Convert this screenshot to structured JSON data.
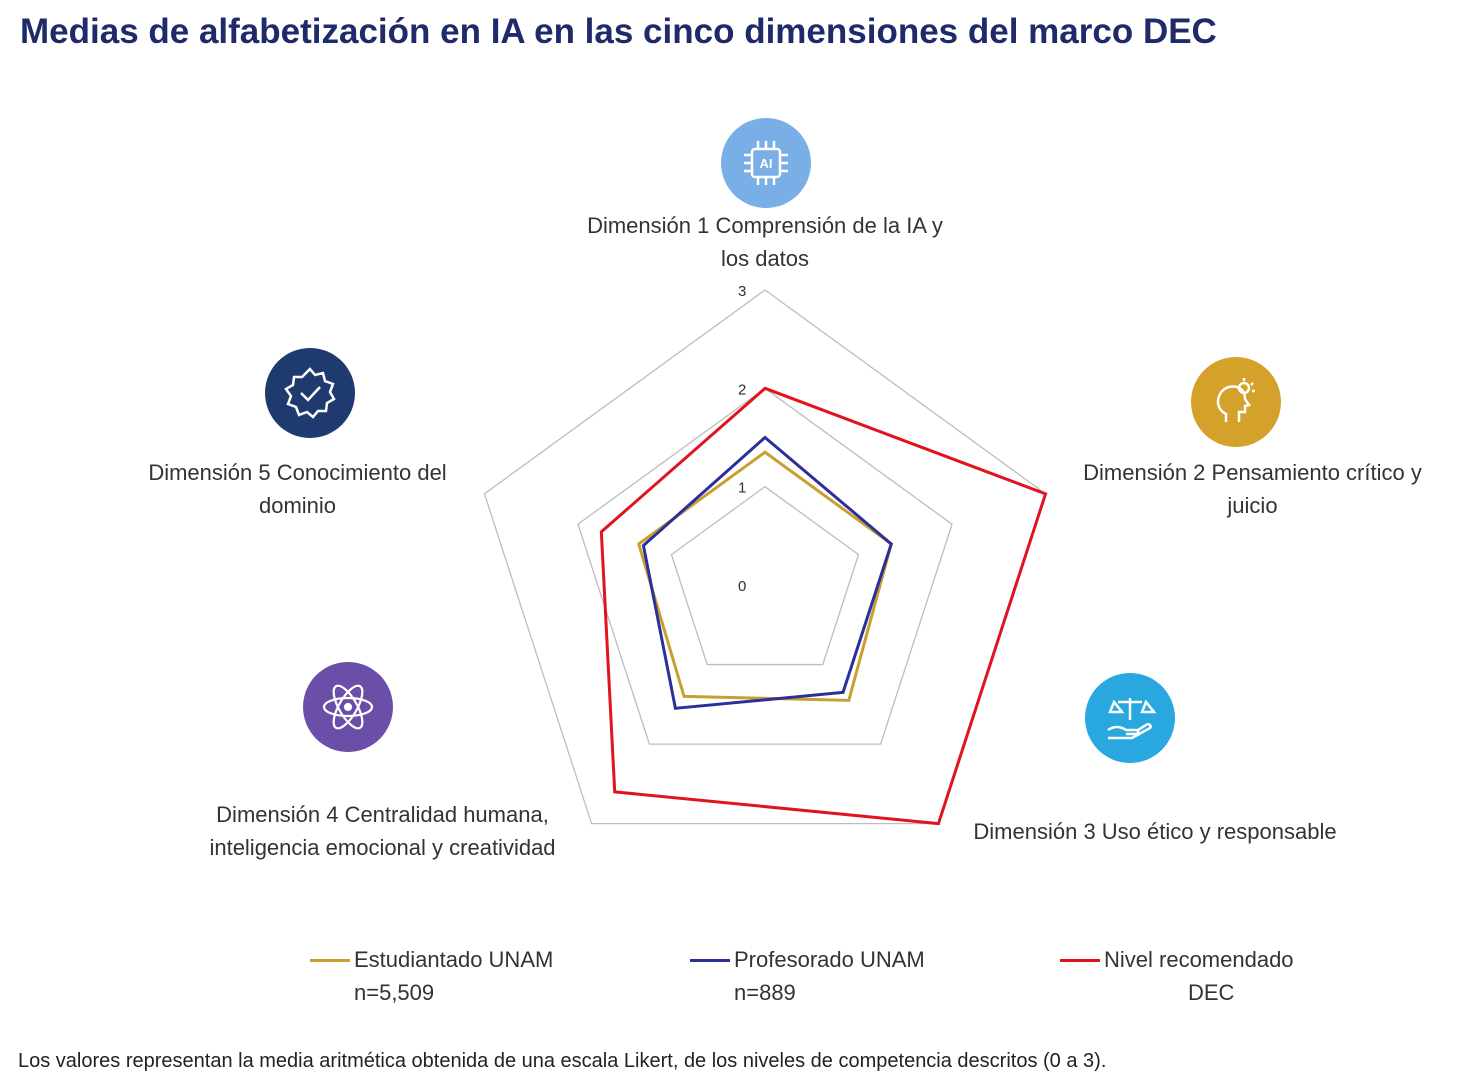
{
  "chart_data": {
    "type": "radar",
    "title": "Medias de alfabetización en IA en las cinco dimensiones del marco DEC",
    "rlim": [
      0,
      3
    ],
    "ticks": [
      "0",
      "1",
      "2",
      "3"
    ],
    "categories": [
      "Dimensión 1 Comprensión de la IA y los datos",
      "Dimensión 2 Pensamiento crítico y juicio",
      "Dimensión 3 Uso ético y responsable",
      "Dimensión 4 Centralidad humana, inteligencia emocional y creatividad",
      "Dimensión 5 Conocimiento del dominio"
    ],
    "category_labels": [
      "Dimensión 1 Comprensión de la IA y\nlos datos",
      "Dimensión 2 Pensamiento crítico y\njuicio",
      "Dimensión 3 Uso ético y responsable",
      "Dimensión 4 Centralidad humana,\ninteligencia emocional y creatividad",
      "Dimensión 5 Conocimiento del\ndominio"
    ],
    "series": [
      {
        "name": "Estudiantado UNAM",
        "sub": "n=5,509",
        "color": "#c8a030",
        "values": [
          1.35,
          1.35,
          1.45,
          1.4,
          1.35
        ]
      },
      {
        "name": "Profesorado UNAM",
        "sub": "n=889",
        "color": "#2b2f9a",
        "values": [
          1.5,
          1.35,
          1.35,
          1.55,
          1.3
        ]
      },
      {
        "name": "Nivel recomendado",
        "sub": "DEC",
        "color": "#e0141e",
        "values": [
          2.0,
          3.0,
          3.0,
          2.6,
          1.75
        ]
      }
    ],
    "legend_position": "bottom",
    "grid": true
  },
  "icons": [
    "ai-chip-icon",
    "head-lightbulb-icon",
    "hand-scales-icon",
    "atom-icon",
    "gear-check-icon"
  ],
  "icon_colors": [
    "#7aaee6",
    "#d4a22a",
    "#29a8e0",
    "#6a4ea8",
    "#1e3a6e"
  ],
  "icon_ai_text": "AI",
  "footnote": "Los valores representan la media aritmética obtenida de una escala Likert, de los niveles de competencia descritos (0 a 3)."
}
